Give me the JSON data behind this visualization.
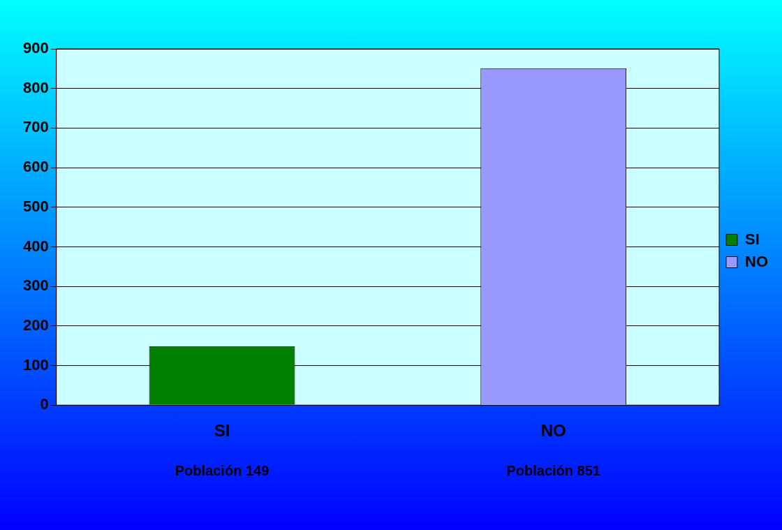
{
  "chart_data": {
    "type": "bar",
    "categories": [
      "SI",
      "NO"
    ],
    "series": [
      {
        "name": "SI",
        "color": "#008000",
        "values": [
          149,
          null
        ]
      },
      {
        "name": "NO",
        "color": "#9999ff",
        "values": [
          null,
          851
        ]
      }
    ],
    "ylim": [
      0,
      900
    ],
    "yticks": [
      0,
      100,
      200,
      300,
      400,
      500,
      600,
      700,
      800,
      900
    ],
    "grid": "y",
    "legend": "right",
    "annotations": [
      "Población 149",
      "Población 851"
    ]
  }
}
